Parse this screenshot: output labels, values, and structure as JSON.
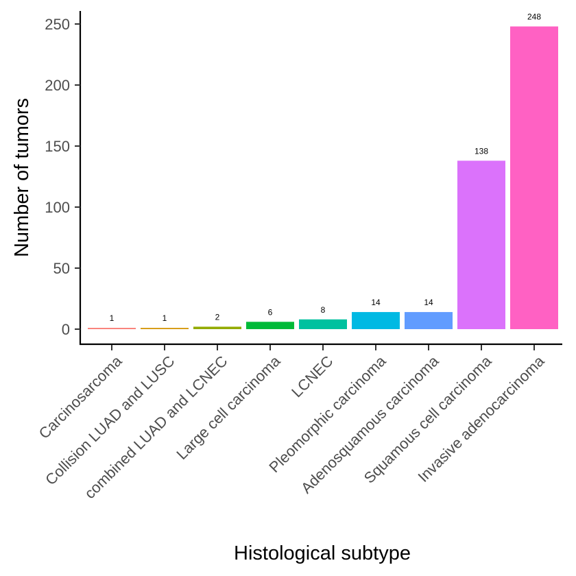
{
  "chart_data": {
    "type": "bar",
    "title": "",
    "xlabel": "Histological subtype",
    "ylabel": "Number of tumors",
    "ylim": [
      0,
      260
    ],
    "yticks": [
      0,
      50,
      100,
      150,
      200,
      250
    ],
    "grid": false,
    "legend": "none",
    "categories": [
      "Carcinosarcoma",
      "Collision LUAD and LUSC",
      "combined LUAD and LCNEC",
      "Large cell carcinoma",
      "LCNEC",
      "Pleomorphic carcinoma",
      "Adenosquamous carcinoma",
      "Squamous cell carcinoma",
      "Invasive adenocarcinoma"
    ],
    "values": [
      1,
      1,
      2,
      6,
      8,
      14,
      14,
      138,
      248
    ],
    "data_labels": [
      "1",
      "1",
      "2",
      "6",
      "8",
      "14",
      "14",
      "138",
      "248"
    ],
    "colors": [
      "#F8766D",
      "#D39200",
      "#93AA00",
      "#00BA38",
      "#00C19F",
      "#00B9E3",
      "#619CFF",
      "#DB72FB",
      "#FF61C3"
    ]
  }
}
